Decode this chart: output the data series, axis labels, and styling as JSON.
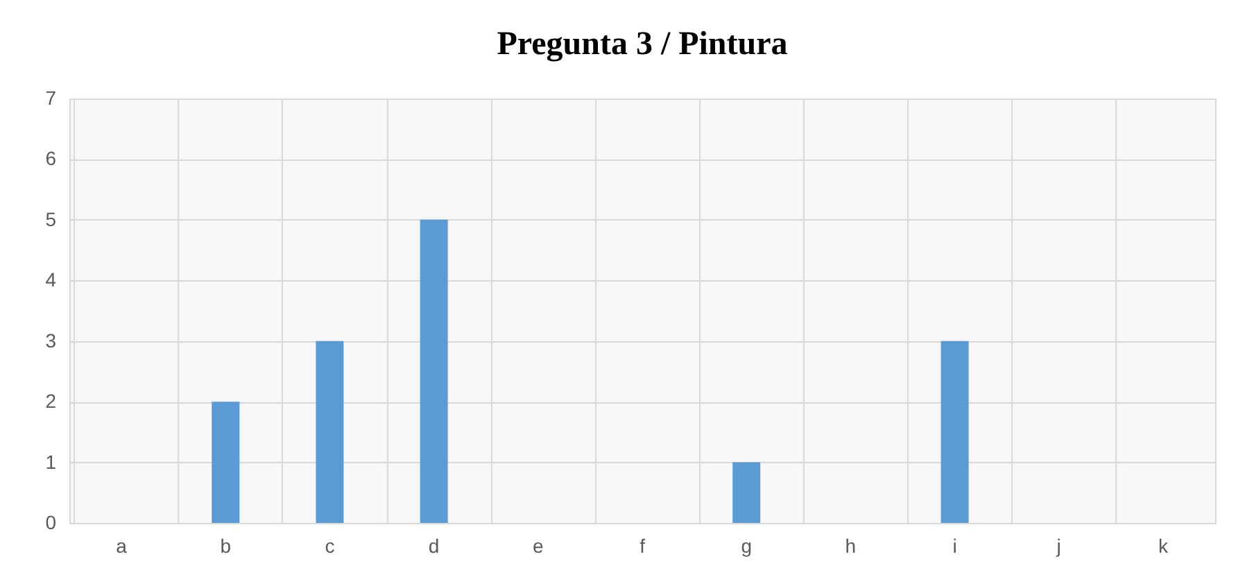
{
  "chart_data": {
    "type": "bar",
    "title": "Pregunta 3 / Pintura",
    "categories": [
      "a",
      "b",
      "c",
      "d",
      "e",
      "f",
      "g",
      "h",
      "i",
      "j",
      "k"
    ],
    "values": [
      0,
      2,
      3,
      5,
      0,
      0,
      1,
      0,
      3,
      0,
      0
    ],
    "color": "#5b9bd5",
    "ylim": [
      0,
      7
    ],
    "yticks": [
      0,
      1,
      2,
      3,
      4,
      5,
      6,
      7
    ],
    "grid": true
  }
}
